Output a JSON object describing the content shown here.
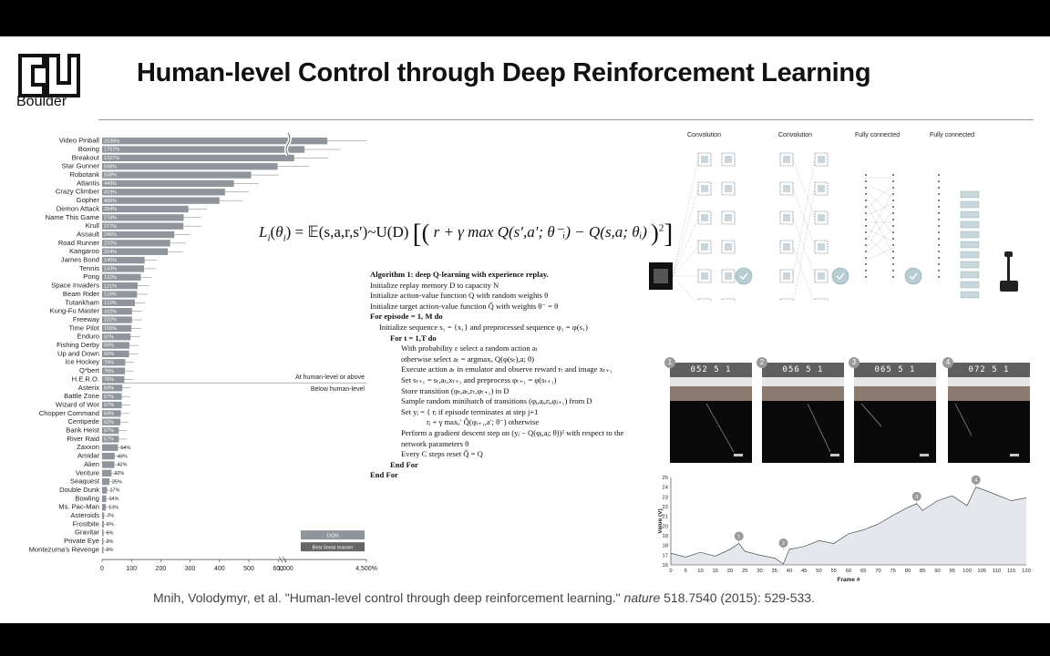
{
  "slide": {
    "title": "Human-level Control through Deep Reinforcement Learning",
    "logo_text": "Boulder",
    "citation_pre": "Mnih, Volodymyr, et al. \"Human-level control through deep reinforcement learning.\" ",
    "citation_journal": "nature",
    "citation_post": " 518.7540 (2015): 529-533."
  },
  "colors": {
    "bar": "#8f959a",
    "dark_bar": "#666",
    "accent_badge": "#9a9a9a"
  },
  "loss": {
    "lhs": "L",
    "formula_text": "= 𝔼(s,a,r,s′)~U(D)",
    "body": "r + γ max Q(s′,a′; θ⁻ᵢ) − Q(s,a; θᵢ)"
  },
  "algorithm": {
    "lines": [
      "Algorithm 1: deep Q-learning with experience replay.",
      "Initialize replay memory D to capacity N",
      "Initialize action-value function Q with random weights θ",
      "Initialize target action-value function Q̂ with weights θ⁻ = θ",
      "For episode = 1, M do",
      "Initialize sequence s₁ = {x₁} and preprocessed sequence φ₁ = φ(s₁)",
      "For t = 1,T do",
      "With probability ε select a random action aₜ",
      "otherwise select aₜ = argmaxₐ Q(φ(sₜ),a; θ)",
      "Execute action aₜ in emulator and observe reward rₜ and image xₜ₊₁",
      "Set sₜ₊₁ = sₜ,aₜ,xₜ₊₁ and preprocess φₜ₊₁ = φ(sₜ₊₁)",
      "Store transition (φₜ,aₜ,rₜ,φₜ₊₁) in D",
      "Sample random minibatch of transitions (φⱼ,aⱼ,rⱼ,φⱼ₊₁) from D",
      "Set yⱼ = { rⱼ   if episode terminates at step j+1",
      "rⱼ + γ maxₐ′ Q̂(φⱼ₊₁,a′; θ⁻)   otherwise",
      "Perform a gradient descent step on (yⱼ − Q(φⱼ,aⱼ; θ))² with respect to the",
      "network parameters θ",
      "Every C steps reset Q̂ = Q",
      "End For",
      "End For"
    ]
  },
  "network": {
    "labels": [
      "Convolution",
      "Convolution",
      "Fully connected",
      "Fully connected"
    ]
  },
  "frames": {
    "scores": [
      "052  5  1",
      "056  5  1",
      "065  5  1",
      "072  5  1"
    ],
    "badges": [
      "1",
      "2",
      "3",
      "4"
    ]
  },
  "chart_data": [
    {
      "type": "bar",
      "title": "",
      "xlabel": "",
      "ylabel": "",
      "x_ticks": [
        "0",
        "100",
        "200",
        "300",
        "400",
        "500",
        "600",
        "1,000",
        "4,500%"
      ],
      "categories": [
        "Video Pinball",
        "Boxing",
        "Breakout",
        "Star Gunner",
        "Robotank",
        "Atlantis",
        "Crazy Climber",
        "Gopher",
        "Demon Attack",
        "Name This Game",
        "Krull",
        "Assault",
        "Road Runner",
        "Kangaroo",
        "James Bond",
        "Tennis",
        "Pong",
        "Space Invaders",
        "Beam Rider",
        "Tutankham",
        "Kung-Fu Master",
        "Freeway",
        "Time Pilot",
        "Enduro",
        "Fishing Derby",
        "Up and Down",
        "Ice Hockey",
        "Q*bert",
        "H.E.R.O.",
        "Asterix",
        "Battle Zone",
        "Wizard of Wor",
        "Chopper Command",
        "Centipede",
        "Bank Heist",
        "River Raid",
        "Zaxxon",
        "Amidar",
        "Alien",
        "Venture",
        "Seaquest",
        "Double Dunk",
        "Bowling",
        "Ms. Pac-Man",
        "Asteroids",
        "Frostbite",
        "Gravitar",
        "Private Eye",
        "Montezuma's Revenge"
      ],
      "values": [
        2539,
        1707,
        1327,
        598,
        508,
        449,
        419,
        400,
        294,
        278,
        277,
        246,
        232,
        224,
        145,
        143,
        132,
        121,
        119,
        112,
        102,
        102,
        100,
        97,
        93,
        92,
        79,
        78,
        76,
        69,
        67,
        67,
        64,
        62,
        57,
        57,
        54,
        43,
        42,
        32,
        25,
        17,
        14,
        13,
        7,
        6,
        5,
        2,
        0
      ],
      "value_labels": [
        "2539%",
        "1707%",
        "1327%",
        "598%",
        "508%",
        "449%",
        "419%",
        "400%",
        "294%",
        "278%",
        "277%",
        "246%",
        "232%",
        "224%",
        "145%",
        "143%",
        "132%",
        "121%",
        "119%",
        "112%",
        "102%",
        "102%",
        "100%",
        "97%",
        "93%",
        "92%",
        "79%",
        "78%",
        "76%",
        "69%",
        "67%",
        "67%",
        "64%",
        "62%",
        "57%",
        "57%",
        "54%",
        "43%",
        "42%",
        "32%",
        "25%",
        "17%",
        "14%",
        "13%",
        "7%",
        "6%",
        "5%",
        "2%",
        "0%"
      ],
      "human_level_label_above": "At human-level or above",
      "human_level_label_below": "Below human-level",
      "legend": [
        "DQN",
        "Best linear learner"
      ]
    },
    {
      "type": "line",
      "xlabel": "Frame #",
      "ylabel": "Value (V)",
      "x_ticks": [
        "0",
        "5",
        "10",
        "15",
        "20",
        "25",
        "30",
        "35",
        "40",
        "45",
        "50",
        "55",
        "60",
        "65",
        "70",
        "75",
        "80",
        "85",
        "90",
        "95",
        "100",
        "105",
        "110",
        "115",
        "120"
      ],
      "y_ticks": [
        "16",
        "17",
        "18",
        "19",
        "20",
        "21",
        "22",
        "23",
        "24",
        "25"
      ],
      "ylim": [
        16,
        25
      ],
      "x": [
        0,
        5,
        10,
        15,
        20,
        23,
        25,
        30,
        35,
        38,
        40,
        45,
        50,
        55,
        60,
        65,
        70,
        75,
        80,
        83,
        85,
        90,
        95,
        100,
        103,
        105,
        110,
        115,
        120
      ],
      "values": [
        17.2,
        16.8,
        17.3,
        16.9,
        17.6,
        18.2,
        17.4,
        17.0,
        16.7,
        16.1,
        17.6,
        17.9,
        18.5,
        18.2,
        19.2,
        19.6,
        20.2,
        21.1,
        21.9,
        22.3,
        21.6,
        22.6,
        23.1,
        22.1,
        24.0,
        23.8,
        23.2,
        22.6,
        22.9
      ],
      "annotations": [
        "1",
        "2",
        "3",
        "4"
      ]
    }
  ]
}
